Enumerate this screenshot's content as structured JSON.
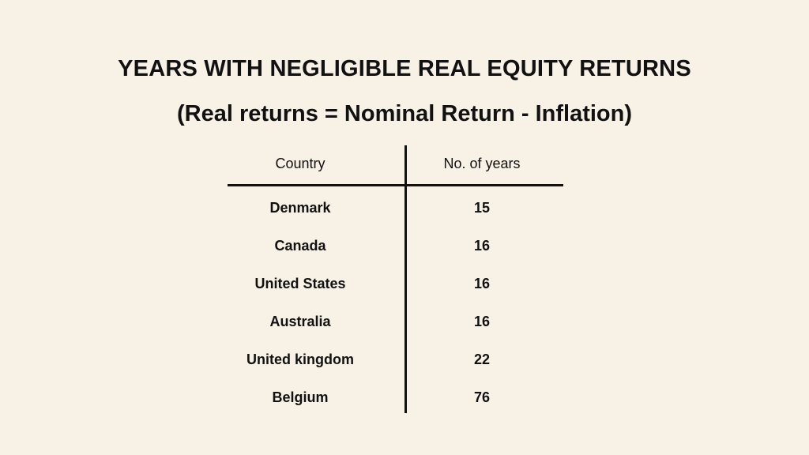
{
  "title": "YEARS WITH NEGLIGIBLE REAL EQUITY RETURNS",
  "subtitle": "(Real returns = Nominal Return - Inflation)",
  "chart_data": {
    "type": "table",
    "columns": [
      "Country",
      "No. of years"
    ],
    "rows": [
      [
        "Denmark",
        "15"
      ],
      [
        "Canada",
        "16"
      ],
      [
        "United States",
        "16"
      ],
      [
        "Australia",
        "16"
      ],
      [
        "United kingdom",
        "22"
      ],
      [
        "Belgium",
        "76"
      ]
    ]
  }
}
